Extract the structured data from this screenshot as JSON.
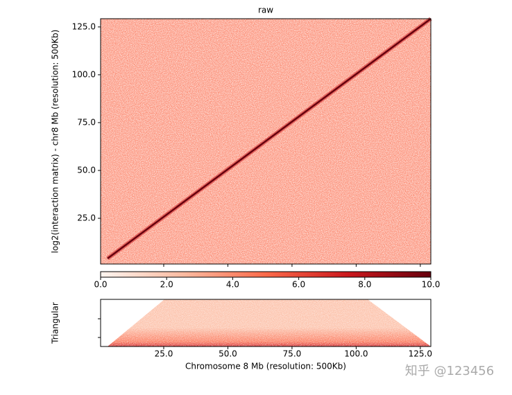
{
  "chart_data": {
    "type": "heatmap",
    "title": "raw",
    "ylabel": "log2(interaction matrix) - chr8 Mb (resolution: 500Kb)",
    "xlim": [
      0.4,
      129.1
    ],
    "ylim": [
      1.1,
      129.3
    ],
    "xticks": [
      {
        "value": 25,
        "label": "25.0"
      },
      {
        "value": 50,
        "label": "50.0"
      },
      {
        "value": 75,
        "label": "75.0"
      },
      {
        "value": 100,
        "label": "100.0"
      },
      {
        "value": 125,
        "label": "125.0"
      }
    ],
    "yticks": [
      {
        "value": 25,
        "label": "25.0"
      },
      {
        "value": 50,
        "label": "50.0"
      },
      {
        "value": 75,
        "label": "75.0"
      },
      {
        "value": 100,
        "label": "100.0"
      },
      {
        "value": 125,
        "label": "125.0"
      }
    ],
    "colormap": [
      "#fff5f0",
      "#fcbba1",
      "#fb6a4a",
      "#cb181d",
      "#67000d"
    ],
    "colorbar": {
      "lim": [
        0,
        10
      ],
      "ticks": [
        {
          "value": 0,
          "label": "0.0"
        },
        {
          "value": 2,
          "label": "2.0"
        },
        {
          "value": 4,
          "label": "4.0"
        },
        {
          "value": 6,
          "label": "6.0"
        },
        {
          "value": 8,
          "label": "8.0"
        },
        {
          "value": 10,
          "label": "10.0"
        }
      ]
    },
    "triangular": {
      "ylabel": "Triangular",
      "xlabel": "Chromosome 8 Mb (resolution: 500Kb)"
    },
    "watermark": "知乎 @123456"
  }
}
